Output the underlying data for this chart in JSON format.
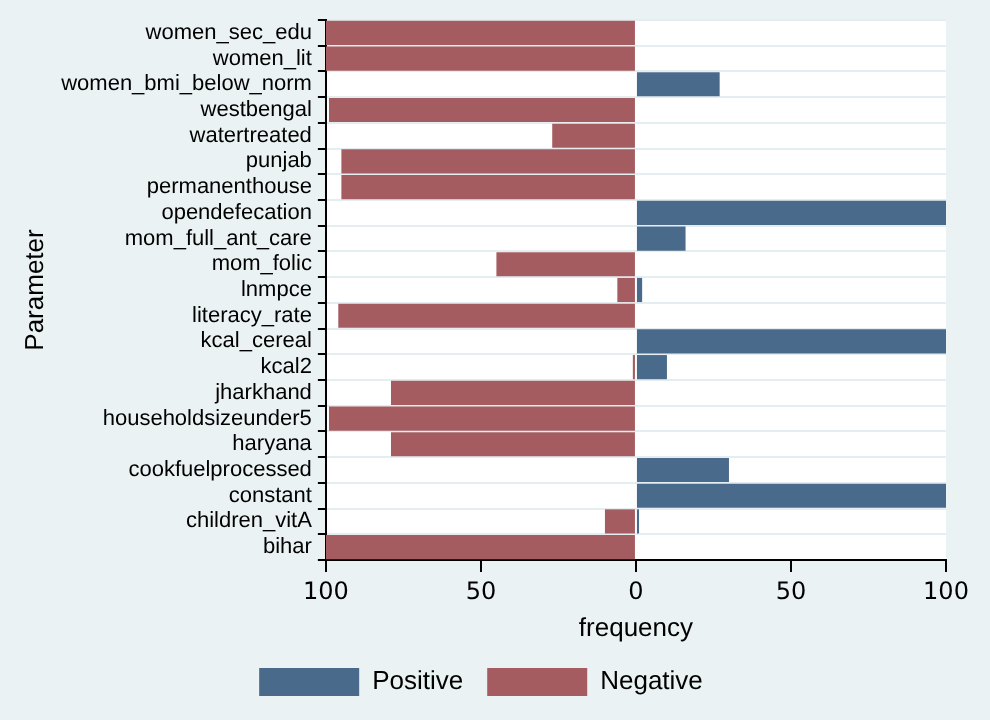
{
  "chart_data": {
    "type": "bar",
    "orientation": "horizontal",
    "stacked": true,
    "xlabel": "frequency",
    "ylabel": "Parameter",
    "categories": [
      "women_sec_edu",
      "women_lit",
      "women_bmi_below_norm",
      "westbengal",
      "watertreated",
      "punjab",
      "permanenthouse",
      "opendefecation",
      "mom_full_ant_care",
      "mom_folic",
      "lnmpce",
      "literacy_rate",
      "kcal_cereal",
      "kcal2",
      "jharkhand",
      "householdsizeunder5",
      "haryana",
      "cookfuelprocessed",
      "constant",
      "children_vitA",
      "bihar"
    ],
    "series": [
      {
        "name": "Positive",
        "color": "#4a6a8b",
        "values": [
          null,
          null,
          27,
          null,
          null,
          null,
          null,
          100,
          16,
          null,
          2,
          null,
          100,
          10,
          null,
          null,
          null,
          30,
          100,
          1,
          null
        ]
      },
      {
        "name": "Negative",
        "color": "#a55c60",
        "values": [
          -100,
          -100,
          null,
          -99,
          -27,
          -95,
          -95,
          null,
          null,
          -45,
          -6,
          -96,
          null,
          -1,
          -79,
          -99,
          -79,
          null,
          null,
          -10,
          -100
        ]
      }
    ],
    "xlim": [
      -100,
      100
    ],
    "xticks": [
      {
        "value": -100,
        "label": "100"
      },
      {
        "value": -50,
        "label": "50"
      },
      0,
      50,
      100
    ],
    "grid": "y",
    "legend": "bottom"
  }
}
